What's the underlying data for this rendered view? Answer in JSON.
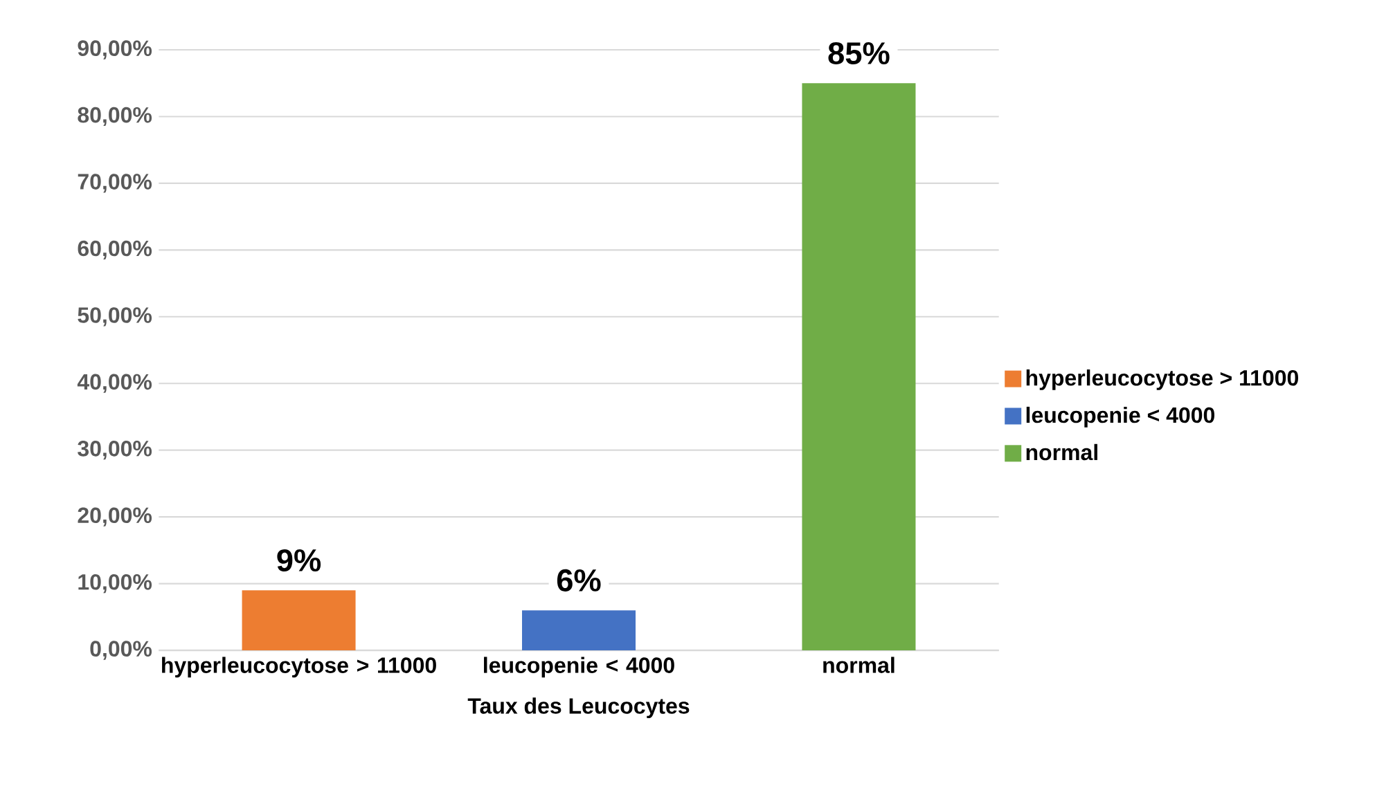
{
  "chart_data": {
    "type": "bar",
    "xlabel": "Taux des Leucocytes",
    "categories": [
      "hyperleucocytose > 11000",
      "leucopenie < 4000",
      "normal"
    ],
    "series": [
      {
        "name": "hyperleucocytose > 11000",
        "color": "#ed7d31",
        "values": [
          9,
          null,
          null
        ],
        "value_labels": [
          "9%",
          null,
          null
        ]
      },
      {
        "name": "leucopenie < 4000",
        "color": "#4472c4",
        "values": [
          null,
          6,
          null
        ],
        "value_labels": [
          null,
          "6%",
          null
        ]
      },
      {
        "name": "normal",
        "color": "#70ad47",
        "values": [
          null,
          null,
          85
        ],
        "value_labels": [
          null,
          null,
          "85%"
        ]
      }
    ],
    "ylim": [
      0,
      90
    ],
    "yticks": [
      {
        "value": 0,
        "label": "0,00%"
      },
      {
        "value": 10,
        "label": "10,00%"
      },
      {
        "value": 20,
        "label": "20,00%"
      },
      {
        "value": 30,
        "label": "30,00%"
      },
      {
        "value": 40,
        "label": "40,00%"
      },
      {
        "value": 50,
        "label": "50,00%"
      },
      {
        "value": 60,
        "label": "60,00%"
      },
      {
        "value": 70,
        "label": "70,00%"
      },
      {
        "value": 80,
        "label": "80,00%"
      },
      {
        "value": 90,
        "label": "90,00%"
      }
    ],
    "grid": "y",
    "legend": "right"
  }
}
